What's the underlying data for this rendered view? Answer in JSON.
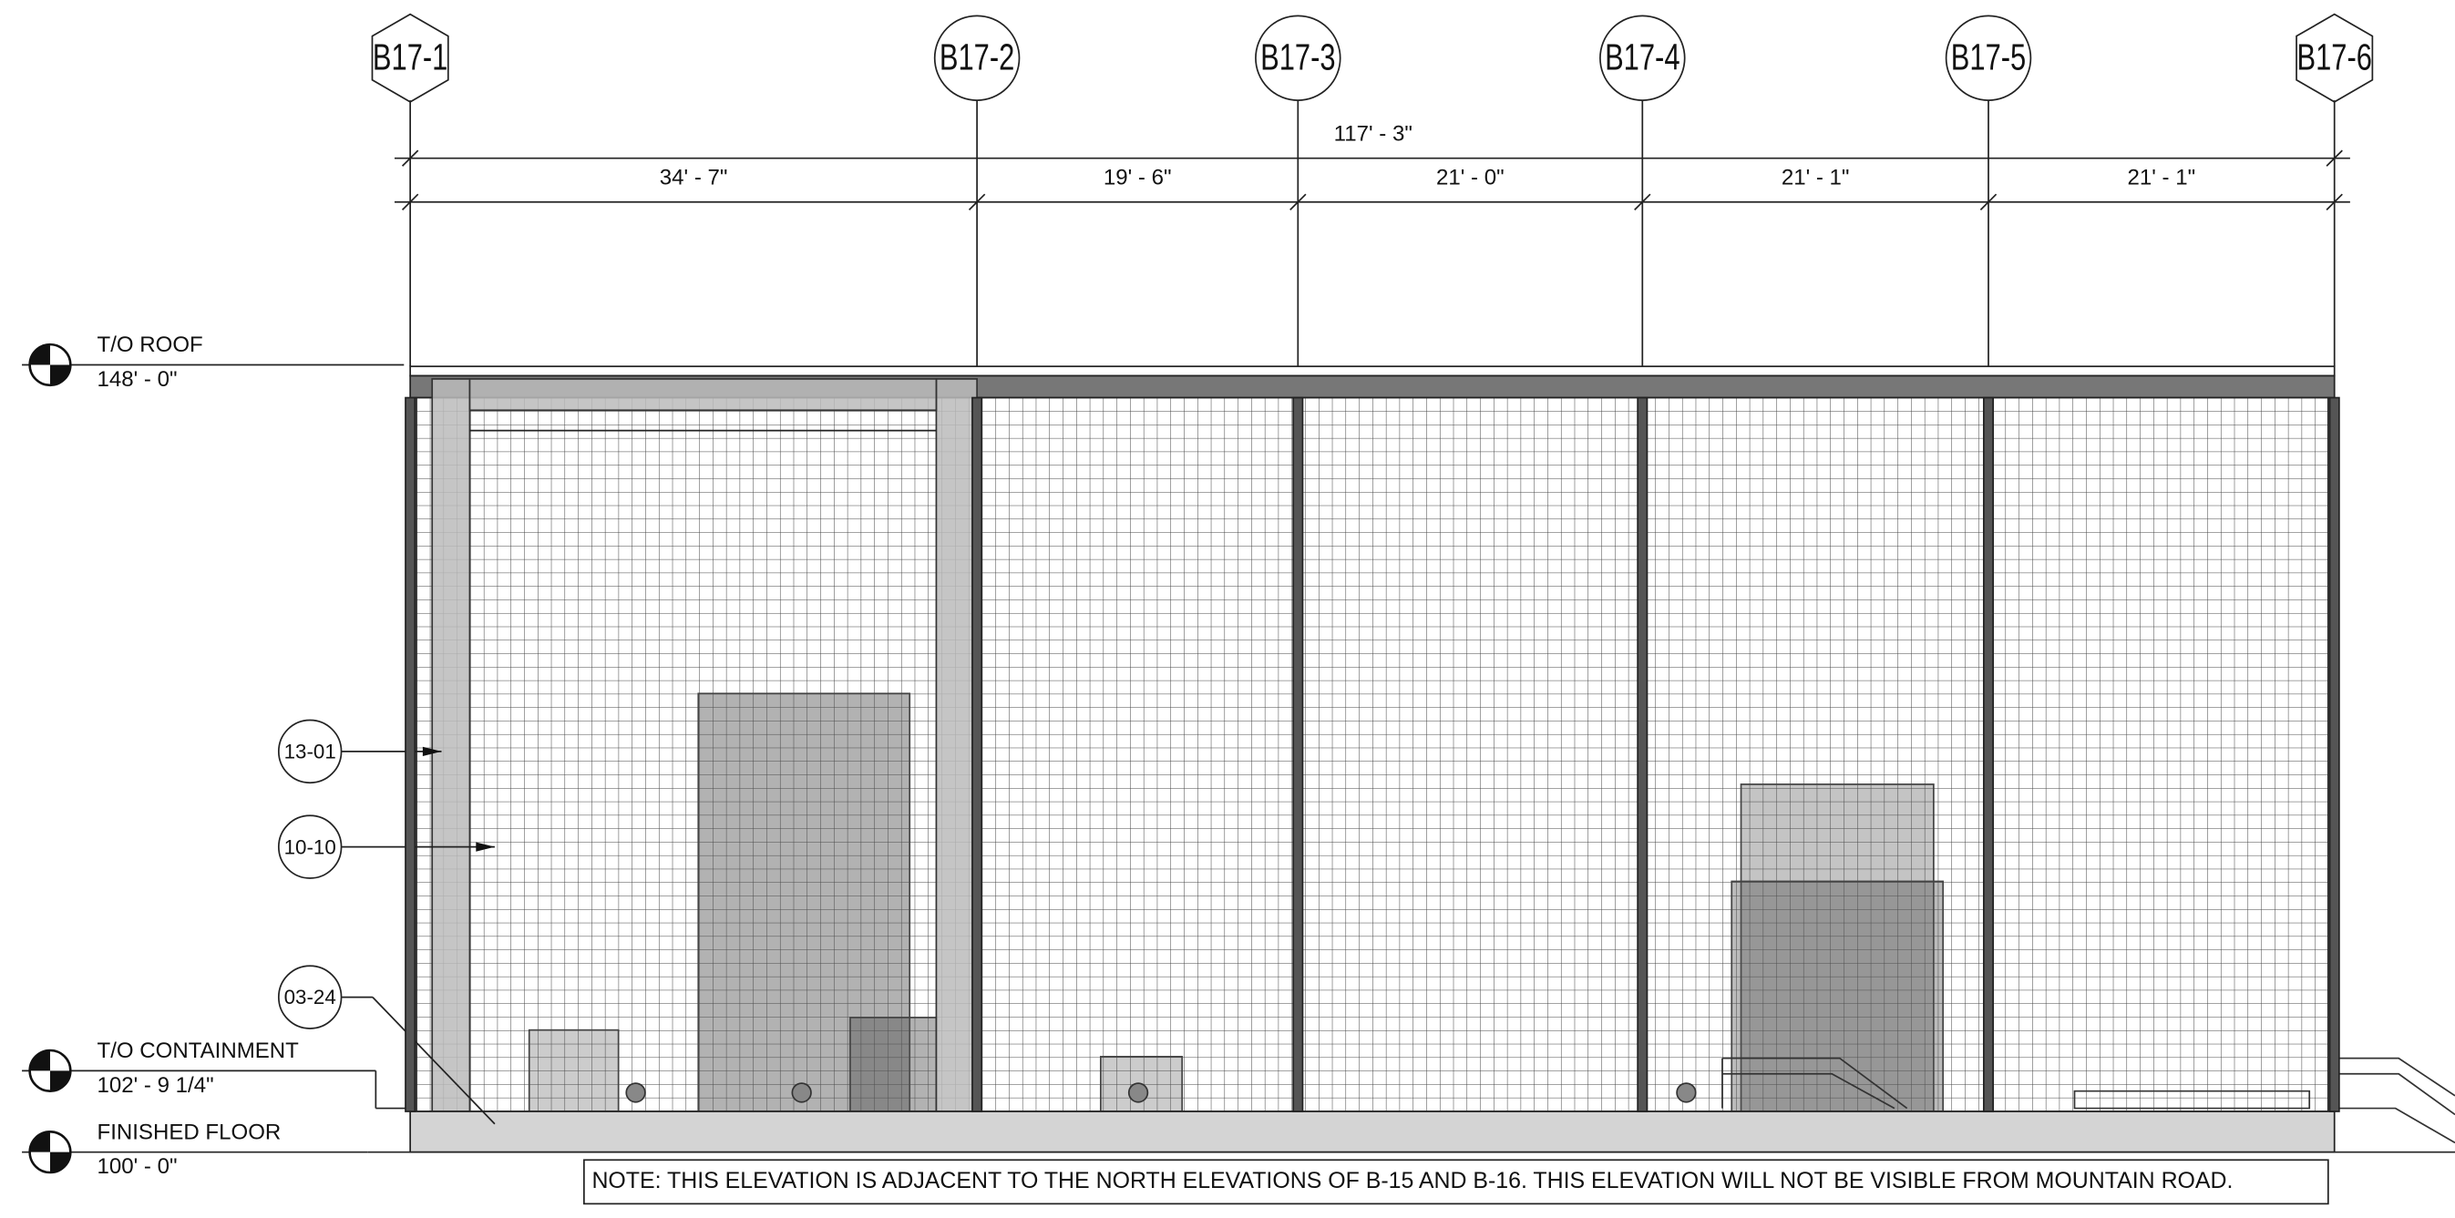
{
  "grids": [
    {
      "label": "B17-1"
    },
    {
      "label": "B17-2"
    },
    {
      "label": "B17-3"
    },
    {
      "label": "B17-4"
    },
    {
      "label": "B17-5"
    },
    {
      "label": "B17-6"
    }
  ],
  "dimensions": {
    "overall": "117' - 3\"",
    "segments": [
      "34' - 7\"",
      "19' - 6\"",
      "21' - 0\"",
      "21' - 1\"",
      "21' - 1\""
    ]
  },
  "levels": [
    {
      "name": "T/O ROOF",
      "elevation": "148' - 0\""
    },
    {
      "name": "T/O CONTAINMENT",
      "elevation": "102' - 9 1/4\""
    },
    {
      "name": "FINISHED FLOOR",
      "elevation": "100' - 0\""
    }
  ],
  "tags": [
    "13-01",
    "10-10",
    "03-24"
  ],
  "note": "NOTE: THIS ELEVATION IS ADJACENT TO THE NORTH ELEVATIONS OF B-15 AND B-16. THIS ELEVATION WILL NOT BE VISIBLE FROM MOUNTAIN ROAD."
}
